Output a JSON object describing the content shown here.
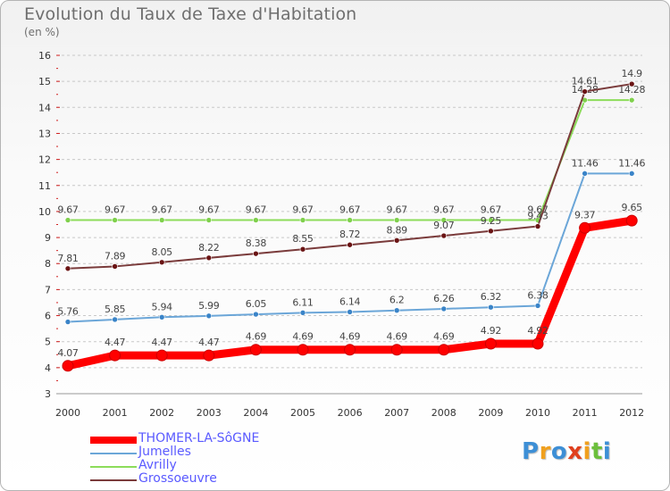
{
  "header": {
    "title": "Evolution du Taux de Taxe d'Habitation",
    "subtitle": "(en %)"
  },
  "logo": {
    "text": "Proxiti"
  },
  "chart_data": {
    "type": "line",
    "title": "Evolution du Taux de Taxe d'Habitation",
    "subtitle": "(en %)",
    "xlabel": "",
    "ylabel": "",
    "x": [
      "2000",
      "2001",
      "2002",
      "2003",
      "2004",
      "2005",
      "2006",
      "2007",
      "2008",
      "2009",
      "2010",
      "2011",
      "2012"
    ],
    "ylim": [
      3,
      16
    ],
    "yticks": [
      "3",
      "4",
      "5",
      "6",
      "7",
      "8",
      "9",
      "10",
      "11",
      "12",
      "13",
      "14",
      "15",
      "16"
    ],
    "grid": "horizontal-dashed",
    "legend_position": "bottom-left",
    "series": [
      {
        "name": "THOMER-LA-SôGNE",
        "color": "#ff0000",
        "emphasis": true,
        "values": [
          4.07,
          4.47,
          4.47,
          4.47,
          4.69,
          4.69,
          4.69,
          4.69,
          4.69,
          4.92,
          4.92,
          9.37,
          9.65
        ],
        "labels": [
          "4.07",
          "4.47",
          "4.47",
          "4.47",
          "4.69",
          "4.69",
          "4.69",
          "4.69",
          "4.69",
          "4.92",
          "4.92",
          "9.37",
          "9.65"
        ]
      },
      {
        "name": "Jumelles",
        "color": "#6ba6d8",
        "values": [
          5.76,
          5.85,
          5.94,
          5.99,
          6.05,
          6.11,
          6.14,
          6.2,
          6.26,
          6.32,
          6.38,
          11.46,
          11.46
        ],
        "labels": [
          "5.76",
          "5.85",
          "5.94",
          "5.99",
          "6.05",
          "6.11",
          "6.14",
          "6.2",
          "6.26",
          "6.32",
          "6.38",
          "11.46",
          "11.46"
        ]
      },
      {
        "name": "Avrilly",
        "color": "#8cdc5a",
        "values": [
          9.67,
          9.67,
          9.67,
          9.67,
          9.67,
          9.67,
          9.67,
          9.67,
          9.67,
          9.67,
          9.67,
          14.28,
          14.28
        ],
        "labels": [
          "9.67",
          "9.67",
          "9.67",
          "9.67",
          "9.67",
          "9.67",
          "9.67",
          "9.67",
          "9.67",
          "9.67",
          "9.67",
          "14.28",
          "14.28"
        ]
      },
      {
        "name": "Grossoeuvre",
        "color": "#7a3b3b",
        "values": [
          7.81,
          7.89,
          8.05,
          8.22,
          8.38,
          8.55,
          8.72,
          8.89,
          9.07,
          9.25,
          9.43,
          14.61,
          14.9
        ],
        "labels": [
          "7.81",
          "7.89",
          "8.05",
          "8.22",
          "8.38",
          "8.55",
          "8.72",
          "8.89",
          "9.07",
          "9.25",
          "9.43",
          "14.61",
          "14.9"
        ]
      }
    ]
  }
}
